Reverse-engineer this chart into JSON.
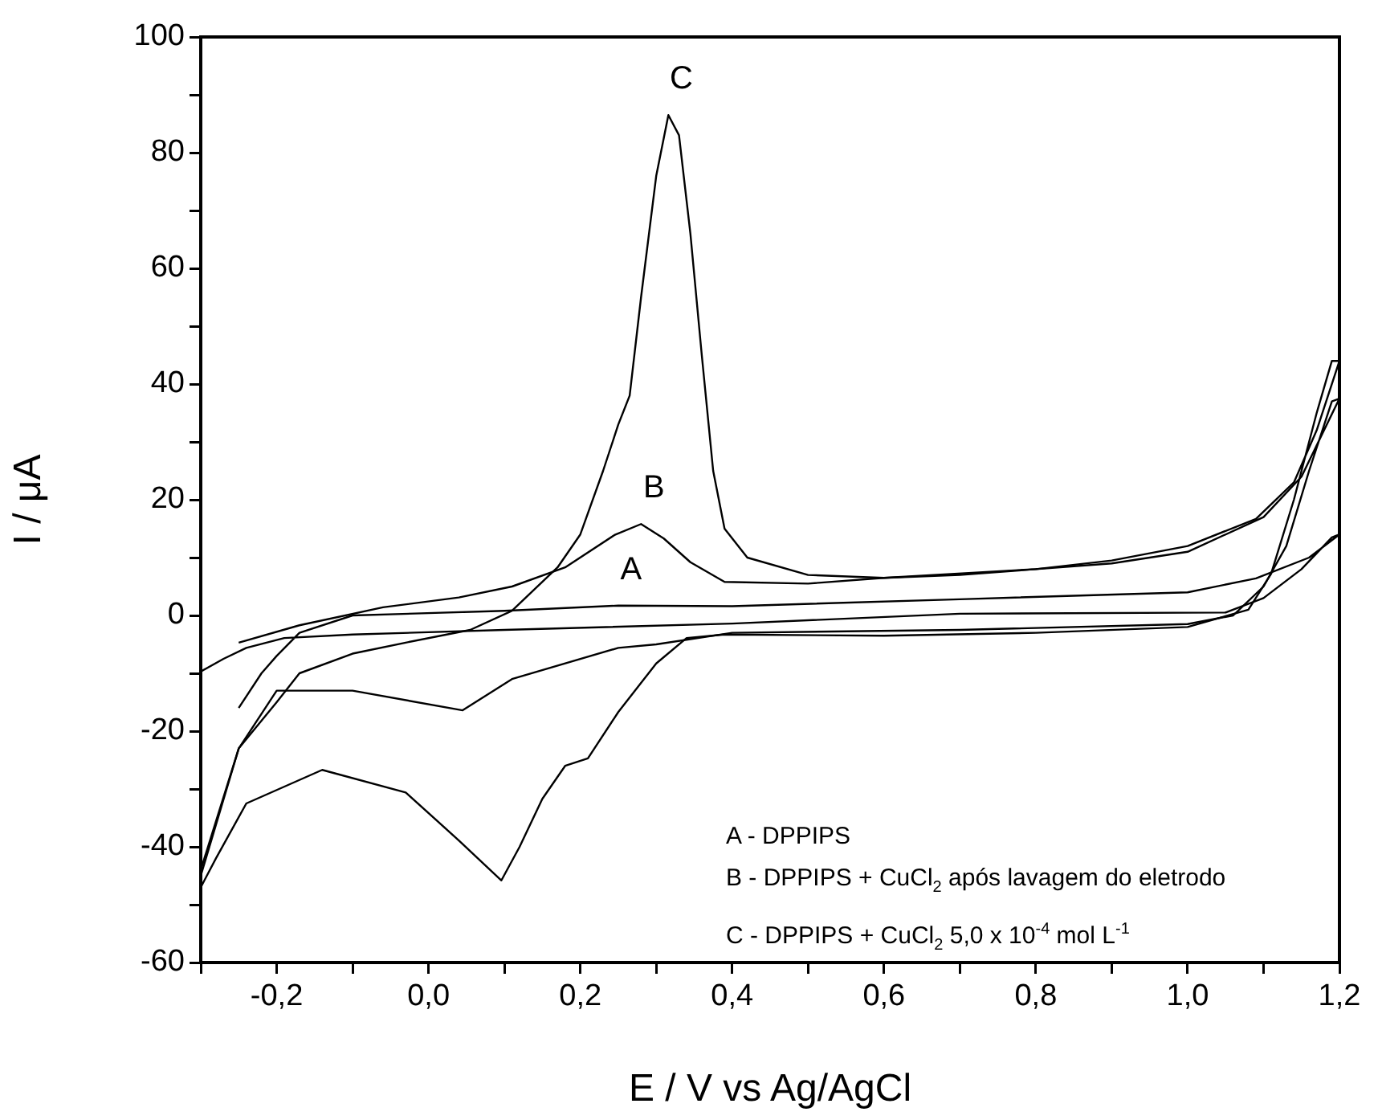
{
  "chart_data": {
    "type": "line",
    "xlabel": "E / V vs Ag/AgCl",
    "ylabel": "I / μA",
    "xlim": [
      -0.3,
      1.2
    ],
    "ylim": [
      -60,
      100
    ],
    "xticks": [
      {
        "value": -0.3,
        "label": null
      },
      {
        "value": -0.2,
        "label": "-0,2"
      },
      {
        "value": -0.1,
        "label": null
      },
      {
        "value": 0,
        "label": "0,0"
      },
      {
        "value": 0.1,
        "label": null
      },
      {
        "value": 0.2,
        "label": "0,2"
      },
      {
        "value": 0.3,
        "label": null
      },
      {
        "value": 0.4,
        "label": "0,4"
      },
      {
        "value": 0.5,
        "label": null
      },
      {
        "value": 0.6,
        "label": "0,6"
      },
      {
        "value": 0.7,
        "label": null
      },
      {
        "value": 0.8,
        "label": "0,8"
      },
      {
        "value": 0.9,
        "label": null
      },
      {
        "value": 1.0,
        "label": "1,0"
      },
      {
        "value": 1.1,
        "label": null
      },
      {
        "value": 1.2,
        "label": "1,2"
      }
    ],
    "yticks": [
      -60,
      {
        "value": -50,
        "label": null
      },
      -40,
      {
        "value": -30,
        "label": null
      },
      -20,
      {
        "value": -10,
        "label": null
      },
      0,
      {
        "value": 10,
        "label": null
      },
      20,
      {
        "value": 30,
        "label": null
      },
      40,
      {
        "value": 50,
        "label": null
      },
      60,
      {
        "value": 70,
        "label": null
      },
      80,
      {
        "value": 90,
        "label": null
      },
      100
    ],
    "marker": "none",
    "line_style": "solid",
    "legend": false,
    "series": [
      {
        "color": "#000000",
        "x": [
          -0.25,
          -0.22,
          -0.2,
          -0.17,
          -0.1,
          0.1,
          0.25,
          0.4,
          0.7,
          1.0,
          1.09,
          1.16,
          1.2,
          1.19,
          1.15,
          1.1,
          1.05,
          0.7,
          0.4,
          0.1,
          -0.1,
          -0.19,
          -0.24,
          -0.27,
          -0.3
        ],
        "values": [
          -16,
          -10,
          -7,
          -3,
          0,
          0.8,
          1.7,
          1.6,
          2.8,
          4,
          6.4,
          10,
          14,
          13.5,
          8,
          3,
          0.5,
          0.3,
          -1.4,
          -2.5,
          -3.3,
          -3.9,
          -5.6,
          -7.5,
          -9.7
        ]
      },
      {
        "color": "#000000",
        "x": [
          -0.25,
          -0.17,
          -0.06,
          0.04,
          0.11,
          0.18,
          0.245,
          0.28,
          0.31,
          0.345,
          0.39,
          0.5,
          0.6,
          0.7,
          0.9,
          1.0,
          1.1,
          1.15,
          1.2,
          1.19,
          1.16,
          1.13,
          1.1,
          1.06,
          1.0,
          0.7,
          0.4,
          0.3,
          0.25,
          0.11,
          0.045,
          -0.1,
          -0.2,
          -0.25,
          -0.3
        ],
        "values": [
          -4.7,
          -1.7,
          1.4,
          3.1,
          5,
          8.3,
          13.9,
          15.8,
          13.3,
          9.2,
          5.8,
          5.5,
          6.5,
          7,
          9,
          11,
          17,
          24,
          37.5,
          37,
          25,
          12,
          5,
          0,
          -1.5,
          -2.5,
          -3,
          -5,
          -5.6,
          -11,
          -16.4,
          -13,
          -13,
          -23,
          -44
        ]
      },
      {
        "color": "#000000",
        "x": [
          -0.3,
          -0.25,
          -0.2,
          -0.17,
          -0.1,
          -0.03,
          0.055,
          0.11,
          0.17,
          0.2,
          0.23,
          0.25,
          0.265,
          0.28,
          0.3,
          0.316,
          0.33,
          0.345,
          0.36,
          0.375,
          0.39,
          0.42,
          0.5,
          0.6,
          0.8,
          0.9,
          1.0,
          1.09,
          1.14,
          1.17,
          1.2,
          1.19,
          1.17,
          1.14,
          1.11,
          1.08,
          1.0,
          0.8,
          0.6,
          0.39,
          0.34,
          0.3,
          0.25,
          0.21,
          0.18,
          0.15,
          0.12,
          0.096,
          0.04,
          -0.03,
          -0.14,
          -0.24,
          -0.28,
          -0.3
        ],
        "values": [
          -45,
          -23,
          -15,
          -10,
          -6.6,
          -4.7,
          -2.5,
          0.8,
          8.3,
          14,
          25,
          33,
          38,
          55,
          76,
          86.5,
          83,
          66,
          45,
          25,
          15,
          10,
          7,
          6.5,
          8,
          9.5,
          12,
          16.7,
          23,
          32,
          44,
          44,
          35,
          20,
          7.2,
          1,
          -2,
          -3,
          -3.5,
          -3.3,
          -3.9,
          -8.3,
          -16.7,
          -24.7,
          -26,
          -31.7,
          -40,
          -45.8,
          -38.9,
          -30.6,
          -26.7,
          -32.5,
          -42,
          -47
        ]
      }
    ],
    "annotations": [
      {
        "text": "A",
        "x": 0.25,
        "y": 1.7
      },
      {
        "text": "B",
        "x": 0.28,
        "y": 15.8
      },
      {
        "text": "C",
        "x": 0.316,
        "y": 86.5
      },
      "A - DPPIPS",
      "B - DPPIPS + CuCl$_{2}$ após lavagem do eletrodo",
      "C - DPPIPS + CuCl$_{2}$ 5,0 x 10$^{-4}$ mol L$^{-1}$"
    ]
  }
}
